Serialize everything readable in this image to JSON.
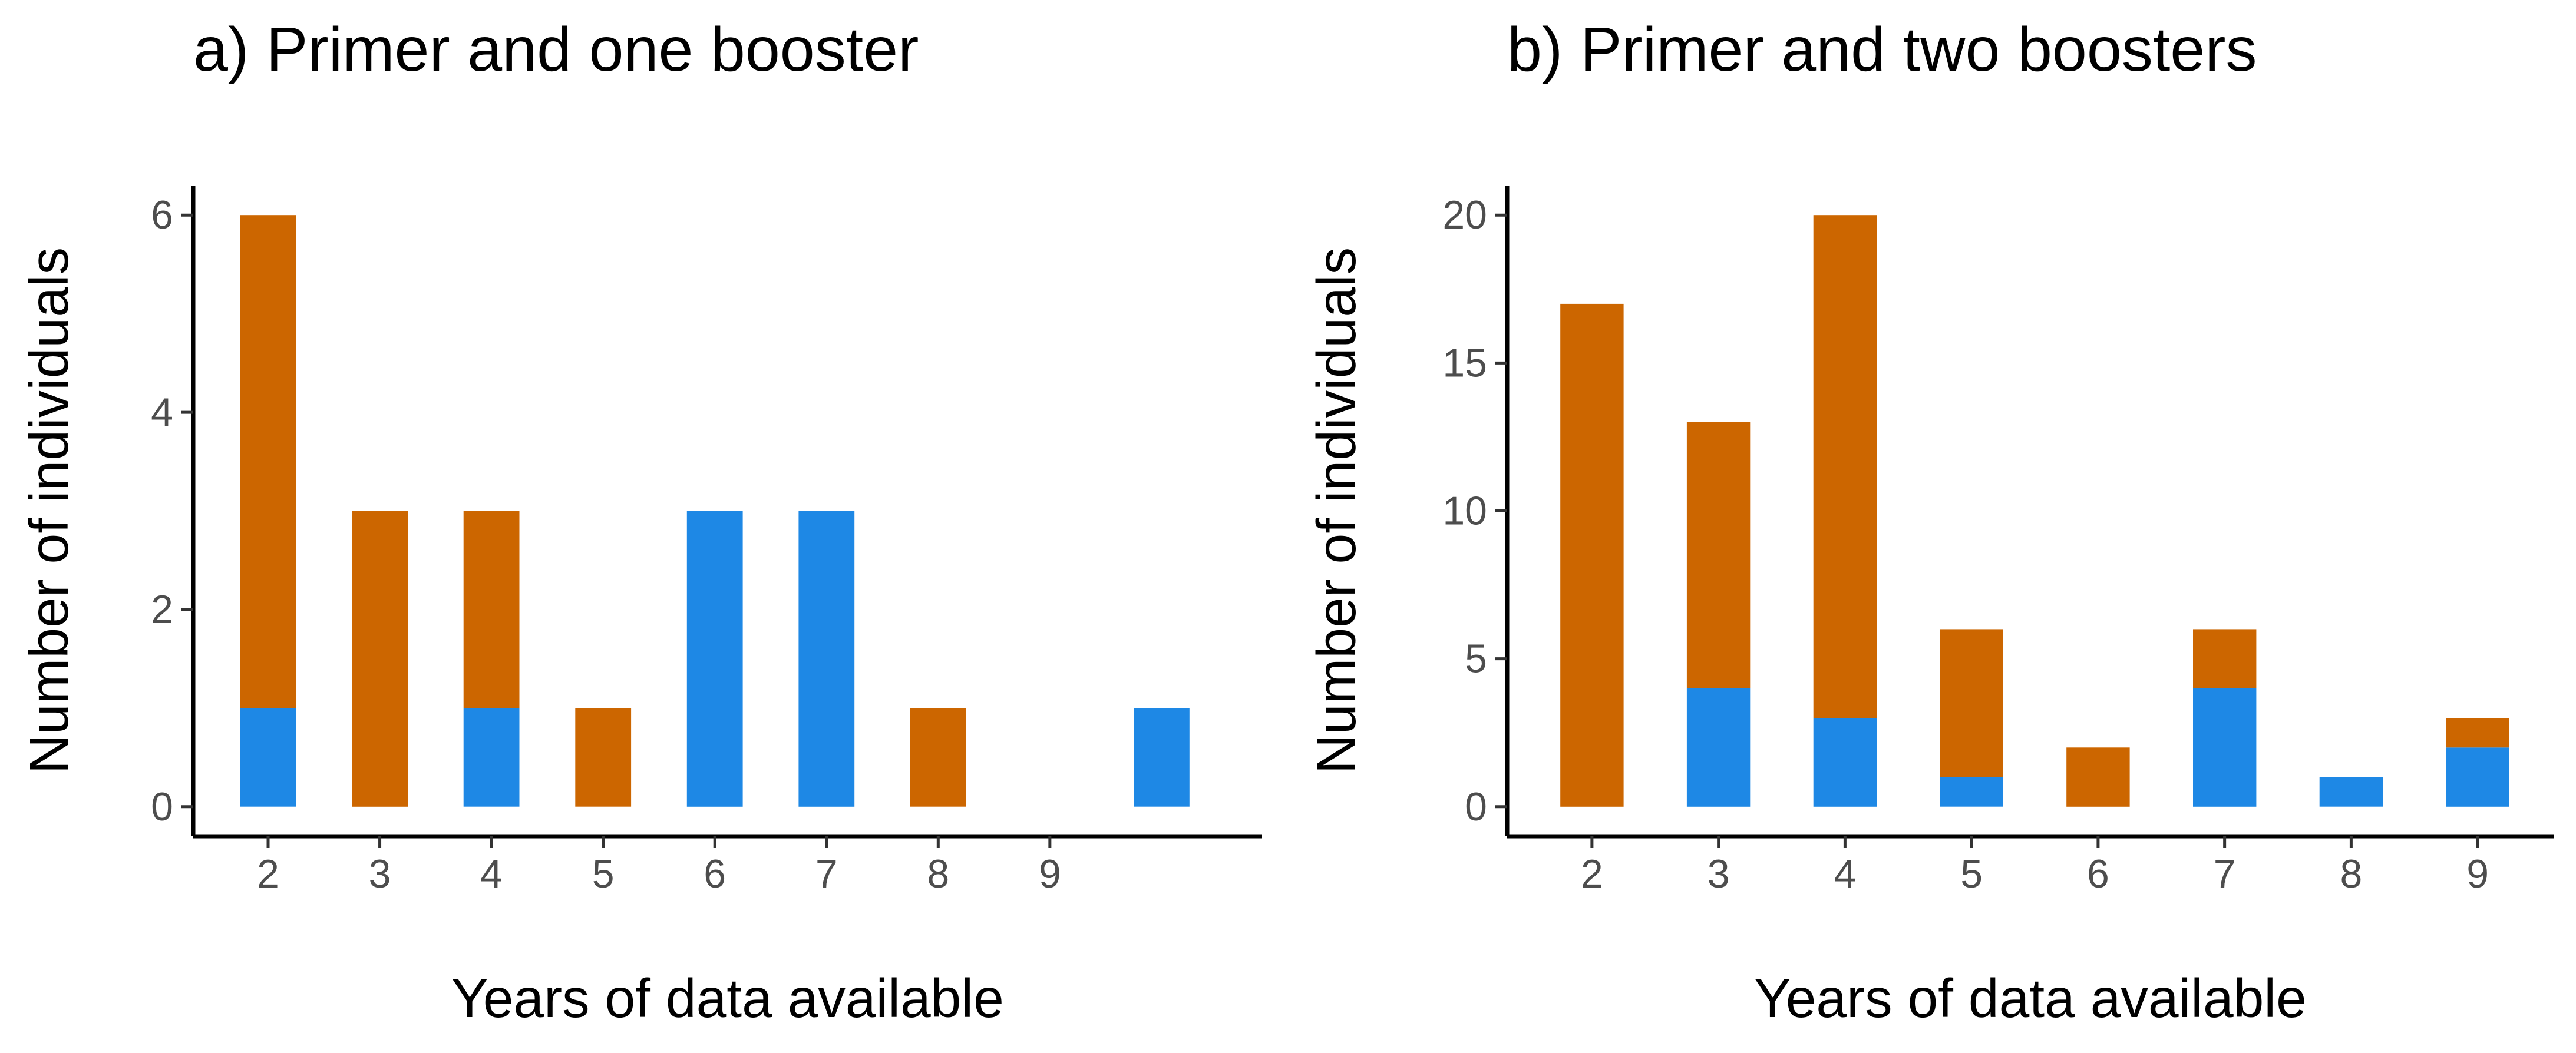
{
  "colors": {
    "orange": "#CC6600",
    "blue": "#1E88E5",
    "axis": "#000000",
    "tick_text": "#4d4d4d"
  },
  "chart_data": [
    {
      "type": "bar",
      "stacked": true,
      "title": "a) Primer and one booster",
      "xlabel": "Years of data available",
      "ylabel": "Number of individuals",
      "x_ticks": [
        "2",
        "3",
        "4",
        "5",
        "6",
        "7",
        "8",
        "9"
      ],
      "x_positions": [
        2,
        3,
        4,
        5,
        6,
        7,
        8,
        9,
        10
      ],
      "xlim": [
        1.33,
        10.9
      ],
      "ylim": [
        -0.3,
        6.3
      ],
      "y_ticks": [
        0,
        2,
        4,
        6
      ],
      "series": [
        {
          "color": "#1E88E5",
          "values": [
            1,
            0,
            1,
            0,
            3,
            3,
            0,
            0,
            1
          ]
        },
        {
          "color": "#CC6600",
          "values": [
            5,
            3,
            2,
            1,
            0,
            0,
            1,
            0,
            0
          ]
        }
      ],
      "grid": false,
      "legend": "none"
    },
    {
      "type": "bar",
      "stacked": true,
      "title": "b) Primer and two boosters",
      "xlabel": "Years of data available",
      "ylabel": "Number of individuals",
      "x_ticks": [
        "2",
        "3",
        "4",
        "5",
        "6",
        "7",
        "8",
        "9"
      ],
      "x_positions": [
        2,
        3,
        4,
        5,
        6,
        7,
        8,
        9
      ],
      "xlim": [
        1.33,
        9.6
      ],
      "ylim": [
        -1.0,
        21.0
      ],
      "y_ticks": [
        0,
        5,
        10,
        15,
        20
      ],
      "series": [
        {
          "color": "#1E88E5",
          "values": [
            0,
            4,
            3,
            1,
            0,
            4,
            1,
            2
          ]
        },
        {
          "color": "#CC6600",
          "values": [
            17,
            9,
            17,
            5,
            2,
            2,
            0,
            1
          ]
        }
      ],
      "grid": false,
      "legend": "none"
    }
  ]
}
